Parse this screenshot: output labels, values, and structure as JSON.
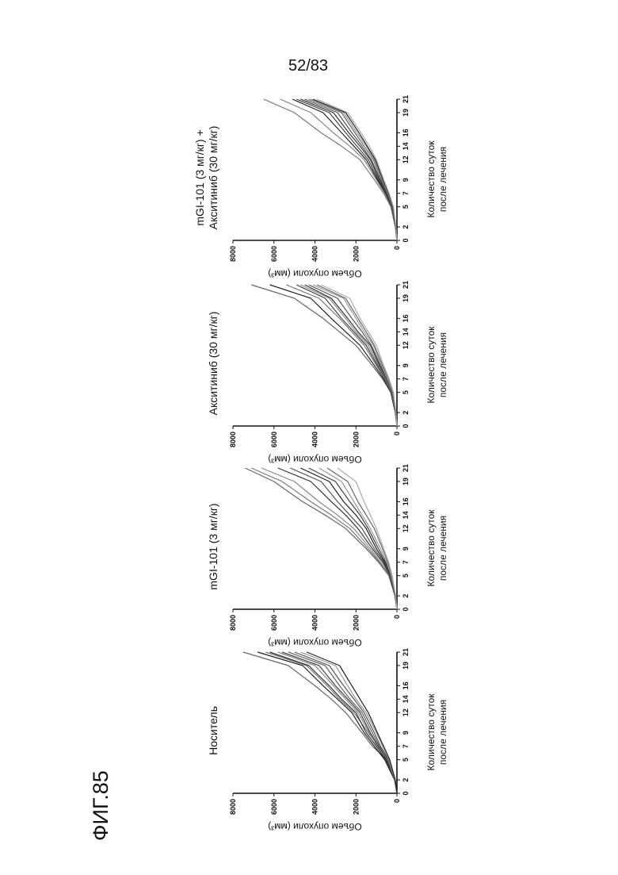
{
  "page_number": "52/83",
  "figure_label": "ФИГ.85",
  "chart_data": [
    {
      "type": "line",
      "title": [
        "Носитель"
      ],
      "xlabel": [
        "Количество суток",
        "после лечения"
      ],
      "ylabel": "Объем опухоли (мм³)",
      "xticks": [
        0,
        2,
        5,
        7,
        9,
        12,
        14,
        16,
        19,
        21
      ],
      "yticks": [
        0,
        2000,
        4000,
        6000,
        8000
      ],
      "ylim": [
        0,
        8000
      ],
      "x": [
        0,
        2,
        5,
        7,
        9,
        12,
        14,
        16,
        19,
        21
      ],
      "series": [
        {
          "color": "#666",
          "values": [
            0,
            100,
            500,
            1200,
            1700,
            2500,
            3200,
            4000,
            5300,
            7500
          ]
        },
        {
          "color": "#222",
          "values": [
            0,
            120,
            600,
            1100,
            1600,
            2200,
            2900,
            3600,
            4600,
            6800
          ]
        },
        {
          "color": "#777",
          "values": [
            0,
            90,
            400,
            900,
            1400,
            2100,
            2800,
            3400,
            4400,
            6400
          ]
        },
        {
          "color": "#333",
          "values": [
            0,
            110,
            550,
            1000,
            1500,
            2000,
            2700,
            3300,
            4300,
            6200
          ]
        },
        {
          "color": "#888",
          "values": [
            0,
            100,
            450,
            950,
            1350,
            1900,
            2500,
            3100,
            4000,
            5800
          ]
        },
        {
          "color": "#444",
          "values": [
            0,
            100,
            500,
            900,
            1300,
            1800,
            2400,
            3000,
            3800,
            5600
          ]
        },
        {
          "color": "#666",
          "values": [
            0,
            100,
            450,
            850,
            1200,
            1700,
            2300,
            2800,
            3500,
            5300
          ]
        },
        {
          "color": "#555",
          "values": [
            0,
            90,
            400,
            800,
            1100,
            1600,
            2100,
            2600,
            3300,
            5000
          ]
        },
        {
          "color": "#999",
          "values": [
            0,
            90,
            380,
            700,
            1000,
            1500,
            2000,
            2400,
            3000,
            4700
          ]
        },
        {
          "color": "#222",
          "values": [
            0,
            80,
            350,
            650,
            950,
            1400,
            1800,
            2200,
            2800,
            4400
          ]
        }
      ]
    },
    {
      "type": "line",
      "title": [
        "mGI-101 (3 мг/кг)"
      ],
      "xlabel": [
        "Количество суток",
        "после лечения"
      ],
      "ylabel": "Объем опухоли (мм³)",
      "xticks": [
        0,
        2,
        5,
        7,
        9,
        12,
        14,
        16,
        19,
        21
      ],
      "yticks": [
        0,
        2000,
        4000,
        6000,
        8000
      ],
      "ylim": [
        0,
        8000
      ],
      "x": [
        0,
        2,
        5,
        7,
        9,
        12,
        14,
        16,
        19,
        21
      ],
      "series": [
        {
          "color": "#666",
          "values": [
            0,
            100,
            400,
            900,
            1500,
            2500,
            3500,
            4600,
            6000,
            7400
          ]
        },
        {
          "color": "#777",
          "values": [
            0,
            100,
            400,
            850,
            1400,
            2300,
            3200,
            4200,
            5600,
            7100
          ]
        },
        {
          "color": "#888",
          "values": [
            0,
            90,
            380,
            800,
            1300,
            2100,
            2900,
            3800,
            5000,
            6600
          ]
        },
        {
          "color": "#333",
          "values": [
            0,
            90,
            350,
            700,
            1200,
            1900,
            2500,
            3200,
            4200,
            5800
          ]
        },
        {
          "color": "#555",
          "values": [
            0,
            80,
            330,
            650,
            1100,
            1700,
            2300,
            2900,
            3700,
            5200
          ]
        },
        {
          "color": "#222",
          "values": [
            0,
            80,
            300,
            600,
            1000,
            1500,
            2000,
            2600,
            3300,
            4700
          ]
        },
        {
          "color": "#444",
          "values": [
            0,
            80,
            300,
            550,
            900,
            1400,
            1800,
            2300,
            3000,
            4300
          ]
        },
        {
          "color": "#999",
          "values": [
            0,
            70,
            280,
            500,
            800,
            1300,
            1700,
            2100,
            2700,
            3800
          ]
        },
        {
          "color": "#666",
          "values": [
            0,
            70,
            250,
            450,
            700,
            1100,
            1500,
            1900,
            2400,
            3400
          ]
        },
        {
          "color": "#aaa",
          "values": [
            0,
            60,
            230,
            400,
            650,
            1000,
            1300,
            1600,
            2000,
            2900
          ]
        }
      ]
    },
    {
      "type": "line",
      "title": [
        "Акситиниб (30 мг/кг)"
      ],
      "xlabel": [
        "Количество суток",
        "после лечения"
      ],
      "ylabel": "Объем опухоли (мм³)",
      "xticks": [
        0,
        2,
        5,
        7,
        9,
        12,
        14,
        16,
        19,
        21
      ],
      "yticks": [
        0,
        2000,
        4000,
        6000,
        8000
      ],
      "ylim": [
        0,
        8000
      ],
      "x": [
        0,
        2,
        5,
        7,
        9,
        12,
        14,
        16,
        19,
        21
      ],
      "series": [
        {
          "color": "#666",
          "values": [
            0,
            80,
            300,
            700,
            1200,
            2000,
            2800,
            3600,
            5000,
            7100
          ]
        },
        {
          "color": "#222",
          "values": [
            0,
            80,
            300,
            650,
            1100,
            1800,
            2500,
            3200,
            4200,
            6200
          ]
        },
        {
          "color": "#777",
          "values": [
            0,
            70,
            280,
            600,
            1000,
            1600,
            2200,
            2800,
            3800,
            5400
          ]
        },
        {
          "color": "#444",
          "values": [
            0,
            70,
            260,
            560,
            950,
            1500,
            2100,
            2700,
            3500,
            4900
          ]
        },
        {
          "color": "#888",
          "values": [
            0,
            60,
            240,
            520,
            900,
            1400,
            2000,
            2500,
            3300,
            4700
          ]
        },
        {
          "color": "#333",
          "values": [
            0,
            60,
            230,
            500,
            850,
            1300,
            1900,
            2400,
            3200,
            4500
          ]
        },
        {
          "color": "#555",
          "values": [
            0,
            60,
            220,
            480,
            800,
            1250,
            1700,
            2200,
            2900,
            4300
          ]
        },
        {
          "color": "#999",
          "values": [
            0,
            50,
            200,
            450,
            750,
            1150,
            1600,
            2000,
            2600,
            4100
          ]
        },
        {
          "color": "#666",
          "values": [
            0,
            50,
            180,
            400,
            700,
            1100,
            1500,
            1900,
            2500,
            3900
          ]
        },
        {
          "color": "#aaa",
          "values": [
            0,
            50,
            170,
            380,
            650,
            1000,
            1400,
            1800,
            2300,
            3700
          ]
        }
      ]
    },
    {
      "type": "line",
      "title": [
        "mGI-101 (3 мг/кг) +",
        "Акситиниб (30 мг/кг)"
      ],
      "xlabel": [
        "Количество суток",
        "после лечения"
      ],
      "ylabel": "Объем опухоли (мм³)",
      "xticks": [
        0,
        2,
        5,
        7,
        9,
        12,
        14,
        16,
        19,
        21
      ],
      "yticks": [
        0,
        2000,
        4000,
        6000,
        8000
      ],
      "ylim": [
        0,
        8000
      ],
      "x": [
        0,
        2,
        5,
        7,
        9,
        12,
        14,
        16,
        19,
        21
      ],
      "series": [
        {
          "color": "#777",
          "values": [
            0,
            80,
            300,
            650,
            1100,
            1800,
            2700,
            3700,
            5000,
            6500
          ]
        },
        {
          "color": "#888",
          "values": [
            0,
            80,
            280,
            600,
            1000,
            1600,
            2300,
            3100,
            4200,
            5700
          ]
        },
        {
          "color": "#222",
          "values": [
            0,
            70,
            260,
            550,
            950,
            1500,
            2100,
            2700,
            3600,
            5100
          ]
        },
        {
          "color": "#444",
          "values": [
            0,
            70,
            250,
            520,
            900,
            1400,
            1950,
            2500,
            3300,
            4900
          ]
        },
        {
          "color": "#333",
          "values": [
            0,
            60,
            230,
            500,
            850,
            1300,
            1800,
            2350,
            3100,
            4700
          ]
        },
        {
          "color": "#555",
          "values": [
            0,
            60,
            220,
            470,
            800,
            1250,
            1700,
            2200,
            2900,
            4500
          ]
        },
        {
          "color": "#666",
          "values": [
            0,
            60,
            210,
            450,
            750,
            1150,
            1600,
            2050,
            2700,
            4300
          ]
        },
        {
          "color": "#999",
          "values": [
            0,
            50,
            190,
            420,
            700,
            1100,
            1500,
            1950,
            2600,
            4200
          ]
        },
        {
          "color": "#222",
          "values": [
            0,
            50,
            180,
            400,
            680,
            1050,
            1450,
            1850,
            2500,
            4100
          ]
        },
        {
          "color": "#aaa",
          "values": [
            0,
            50,
            170,
            380,
            640,
            1000,
            1350,
            1750,
            2400,
            3900
          ]
        }
      ]
    }
  ]
}
